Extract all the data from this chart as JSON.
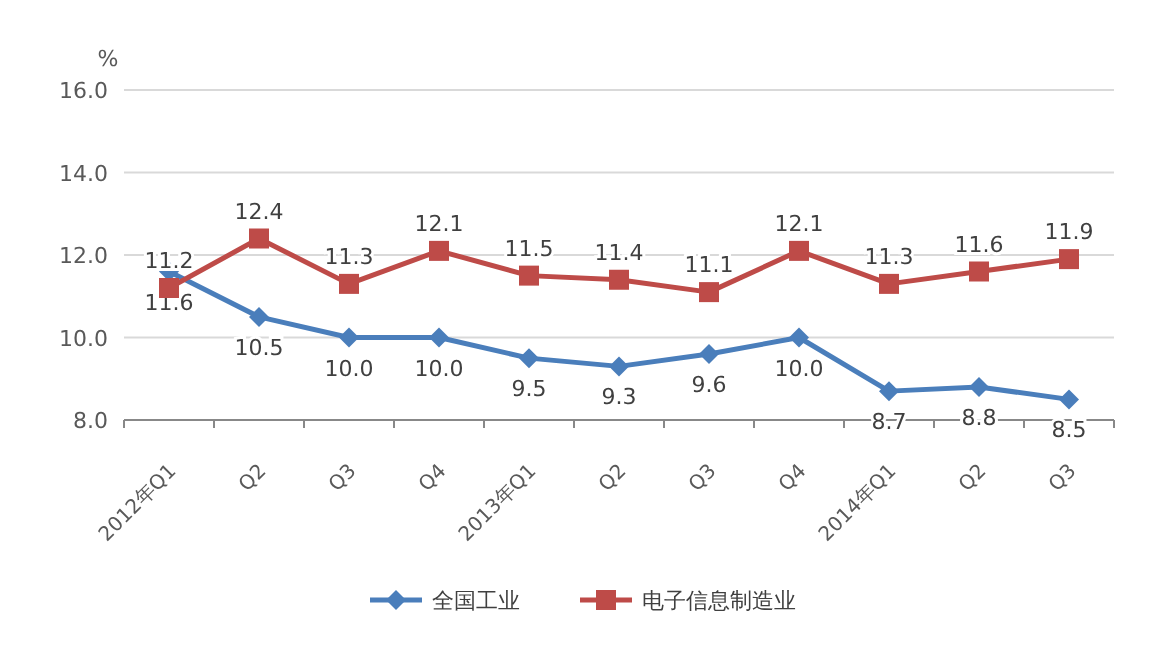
{
  "chart_data": {
    "type": "line",
    "ylabel": "%",
    "categories": [
      "2012年Q1",
      "Q2",
      "Q3",
      "Q4",
      "2013年Q1",
      "Q2",
      "Q3",
      "Q4",
      "2014年Q1",
      "Q2",
      "Q3"
    ],
    "series": [
      {
        "name": "全国工业",
        "color": "#4a7ebb",
        "marker": "diamond",
        "values": [
          11.6,
          10.5,
          10.0,
          10.0,
          9.5,
          9.3,
          9.6,
          10.0,
          8.7,
          8.8,
          8.5
        ],
        "value_labels": [
          "11.6",
          "10.5",
          "10.0",
          "10.0",
          "9.5",
          "9.3",
          "9.6",
          "10.0",
          "8.7",
          "8.8",
          "8.5"
        ]
      },
      {
        "name": "电子信息制造业",
        "color": "#be4b48",
        "marker": "square",
        "values": [
          11.2,
          12.4,
          11.3,
          12.1,
          11.5,
          11.4,
          11.1,
          12.1,
          11.3,
          11.6,
          11.9
        ],
        "value_labels": [
          "11.2",
          "12.4",
          "11.3",
          "12.1",
          "11.5",
          "11.4",
          "11.1",
          "12.1",
          "11.3",
          "11.6",
          "11.9"
        ]
      }
    ],
    "ylim": [
      8,
      16
    ],
    "yticks": [
      {
        "value": 8,
        "label": "8.0"
      },
      {
        "value": 10,
        "label": "10.0"
      },
      {
        "value": 12,
        "label": "12.0"
      },
      {
        "value": 14,
        "label": "14.0"
      },
      {
        "value": 16,
        "label": "16.0"
      }
    ],
    "grid": "y",
    "legend": "bottom"
  }
}
